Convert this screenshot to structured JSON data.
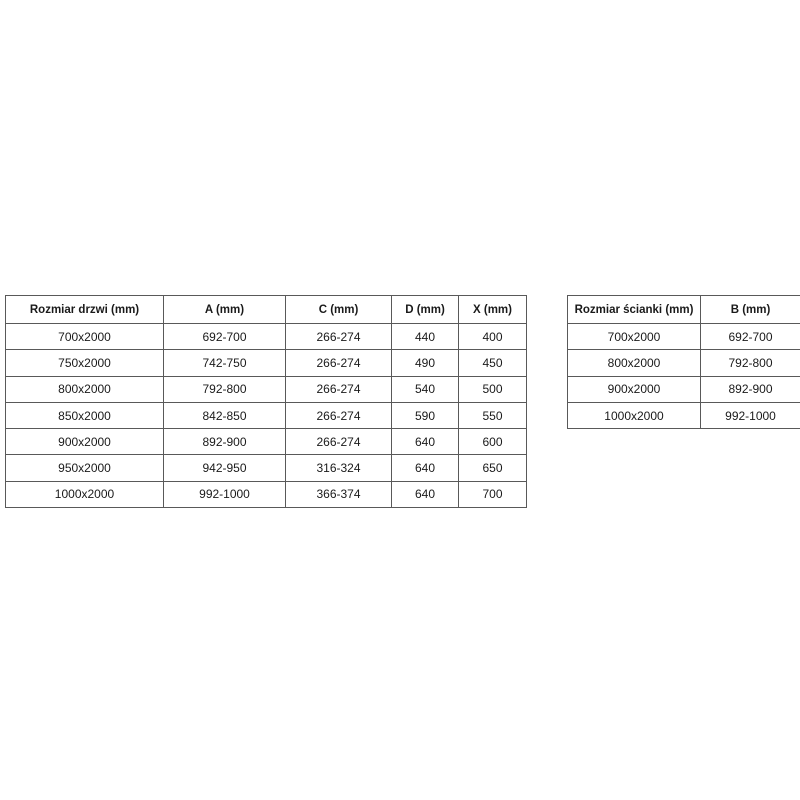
{
  "page": {
    "background": "#ffffff",
    "border_color": "#595959",
    "text_color": "#1a1a1a"
  },
  "door_table": {
    "headers": [
      "Rozmiar drzwi (mm)",
      "A (mm)",
      "C (mm)",
      "D (mm)",
      "X (mm)"
    ],
    "rows": [
      [
        "700x2000",
        "692-700",
        "266-274",
        "440",
        "400"
      ],
      [
        "750x2000",
        "742-750",
        "266-274",
        "490",
        "450"
      ],
      [
        "800x2000",
        "792-800",
        "266-274",
        "540",
        "500"
      ],
      [
        "850x2000",
        "842-850",
        "266-274",
        "590",
        "550"
      ],
      [
        "900x2000",
        "892-900",
        "266-274",
        "640",
        "600"
      ],
      [
        "950x2000",
        "942-950",
        "316-324",
        "640",
        "650"
      ],
      [
        "1000x2000",
        "992-1000",
        "366-374",
        "640",
        "700"
      ]
    ]
  },
  "wall_table": {
    "headers": [
      "Rozmiar ścianki (mm)",
      "B (mm)"
    ],
    "rows": [
      [
        "700x2000",
        "692-700"
      ],
      [
        "800x2000",
        "792-800"
      ],
      [
        "900x2000",
        "892-900"
      ],
      [
        "1000x2000",
        "992-1000"
      ]
    ]
  }
}
